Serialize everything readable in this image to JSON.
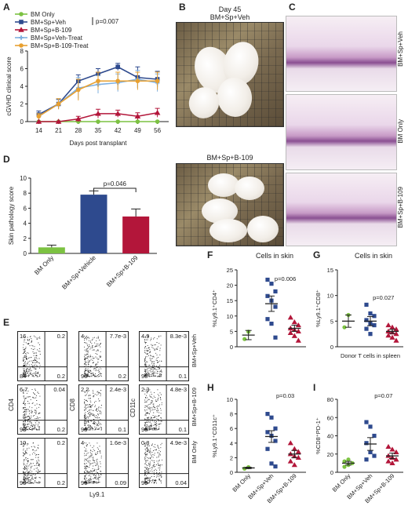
{
  "panels": {
    "a": "A",
    "b": "B",
    "c": "C",
    "d": "D",
    "e": "E",
    "f": "F",
    "g": "G",
    "h": "H",
    "i": "I"
  },
  "photos": {
    "top_label_line1": "Day 45",
    "top_label_line2": "BM+Sp+Veh",
    "bottom_label": "BM+Sp+B-109"
  },
  "histology": [
    "BM+Sp+Veh",
    "BM Only",
    "BM+Sp+B-109"
  ],
  "colors": {
    "bm_only": "#7cc242",
    "veh": "#2e4a8e",
    "b109": "#b3163a",
    "veh_treat": "#7fb0e0",
    "b109_treat": "#e8a030",
    "grid": "#888888"
  },
  "chart_data": [
    {
      "id": "A",
      "type": "line",
      "ylabel": "cGVHD clinical score",
      "xlabel": "Days post transplant",
      "x": [
        14,
        21,
        28,
        35,
        42,
        49,
        56
      ],
      "ylim": [
        0,
        8
      ],
      "yticks": [
        0,
        2,
        4,
        6,
        8
      ],
      "annotation": "p=0.007",
      "series": [
        {
          "name": "BM Only",
          "color": "#7cc242",
          "marker": "circle",
          "values": [
            0,
            0,
            0,
            0,
            0,
            0,
            0
          ],
          "err": [
            0,
            0,
            0,
            0,
            0,
            0,
            0
          ]
        },
        {
          "name": "BM+Sp+Veh",
          "color": "#2e4a8e",
          "marker": "square",
          "values": [
            0.8,
            2.0,
            4.6,
            5.4,
            6.2,
            5.0,
            4.8
          ],
          "err": [
            0.4,
            0.5,
            0.7,
            0.6,
            0.4,
            1.2,
            0.9
          ]
        },
        {
          "name": "BM+Sp+B-109",
          "color": "#b3163a",
          "marker": "triangle",
          "values": [
            0,
            0,
            0.3,
            0.9,
            0.9,
            0.6,
            1.0
          ],
          "err": [
            0,
            0,
            0.3,
            0.5,
            0.4,
            0.4,
            0.5
          ]
        },
        {
          "name": "BM+Sp+Veh-Treat",
          "color": "#7fb0e0",
          "marker": "cross",
          "values": [
            0.6,
            2.0,
            3.8,
            4.2,
            4.4,
            4.8,
            4.4
          ],
          "err": [
            0.3,
            0.6,
            1.2,
            1.0,
            1.0,
            1.0,
            1.0
          ]
        },
        {
          "name": "BM+Sp+B-109-Treat",
          "color": "#e8a030",
          "marker": "circle",
          "values": [
            0.6,
            2.0,
            3.6,
            4.6,
            4.6,
            4.6,
            4.6
          ],
          "err": [
            0.3,
            0.6,
            1.2,
            1.0,
            1.0,
            1.0,
            1.0
          ]
        }
      ]
    },
    {
      "id": "D",
      "type": "bar",
      "ylabel": "Skin pathology score",
      "categories": [
        "BM Only",
        "BM+Sp+Vehicle",
        "BM+Sp+B-109"
      ],
      "values": [
        0.8,
        7.8,
        4.9
      ],
      "err": [
        0.3,
        0.5,
        1.0
      ],
      "colors": [
        "#7cc242",
        "#2e4a8e",
        "#b3163a"
      ],
      "ylim": [
        0,
        10
      ],
      "yticks": [
        0,
        2,
        4,
        6,
        8,
        10
      ],
      "annotation": "p=0.046"
    },
    {
      "id": "F",
      "type": "scatter",
      "title": "Cells in skin",
      "ylabel": "%Ly9.1⁺CD4⁺",
      "ylim": [
        0,
        25
      ],
      "yticks": [
        0,
        5,
        10,
        15,
        20,
        25
      ],
      "annotation": "p=0.006",
      "groups": [
        {
          "color": "#7cc242",
          "marker": "circle",
          "mean": 3.8,
          "sem": 1.5,
          "points": [
            2.5,
            4.9
          ]
        },
        {
          "color": "#2e4a8e",
          "marker": "square",
          "mean": 14.0,
          "sem": 2.5,
          "points": [
            21.8,
            20.5,
            18.0,
            16.5,
            15.0,
            13.0,
            9.0,
            7.5,
            3.0
          ]
        },
        {
          "color": "#b3163a",
          "marker": "triangle",
          "mean": 6.0,
          "sem": 1.0,
          "points": [
            9.5,
            8.0,
            7.0,
            6.0,
            5.5,
            5.0,
            4.5,
            3.5,
            2.0
          ]
        }
      ]
    },
    {
      "id": "G",
      "type": "scatter",
      "title": "Cells in skin",
      "ylabel": "%Ly9.1⁺CD8⁺",
      "xlabel": "Donor T cells in spleen",
      "ylim": [
        0,
        15
      ],
      "yticks": [
        0,
        5,
        10,
        15
      ],
      "annotation": "p=0.027",
      "groups": [
        {
          "color": "#7cc242",
          "marker": "circle",
          "mean": 5.0,
          "sem": 1.2,
          "points": [
            3.8,
            6.2
          ]
        },
        {
          "color": "#2e4a8e",
          "marker": "square",
          "mean": 5.0,
          "sem": 0.9,
          "points": [
            8.2,
            6.5,
            6.0,
            5.2,
            4.5,
            4.2,
            3.5,
            2.5
          ]
        },
        {
          "color": "#b3163a",
          "marker": "triangle",
          "mean": 3.0,
          "sem": 0.4,
          "points": [
            4.2,
            3.8,
            3.4,
            3.0,
            2.8,
            2.5,
            2.2,
            1.8,
            1.2
          ]
        }
      ]
    },
    {
      "id": "H",
      "type": "scatter",
      "ylabel": "%Ly9.1⁺CD11c⁺",
      "categories": [
        "BM Only",
        "BM+Sp+Veh",
        "BM+Sp+B-109"
      ],
      "ylim": [
        0,
        10
      ],
      "yticks": [
        0,
        2,
        4,
        6,
        8,
        10
      ],
      "annotation": "p=0.03",
      "groups": [
        {
          "color": "#7cc242",
          "marker": "circle",
          "mean": 0.6,
          "sem": 0.1,
          "points": [
            0.5,
            0.7
          ]
        },
        {
          "color": "#2e4a8e",
          "marker": "square",
          "mean": 4.9,
          "sem": 0.8,
          "points": [
            8.0,
            7.5,
            6.0,
            5.5,
            5.0,
            4.3,
            3.2,
            1.2,
            0.8
          ]
        },
        {
          "color": "#b3163a",
          "marker": "triangle",
          "mean": 2.5,
          "sem": 0.5,
          "points": [
            4.0,
            3.2,
            2.8,
            2.5,
            2.2,
            2.0,
            1.5,
            1.0
          ]
        }
      ]
    },
    {
      "id": "I",
      "type": "scatter",
      "ylabel": "%CD8⁺PD-1⁺",
      "categories": [
        "BM Only",
        "BM+Sp+Veh",
        "BM+Sp+B-109"
      ],
      "ylim": [
        0,
        80
      ],
      "yticks": [
        0,
        20,
        40,
        60,
        80
      ],
      "annotation": "p=0.07",
      "groups": [
        {
          "color": "#7cc242",
          "marker": "circle",
          "mean": 10,
          "sem": 2,
          "points": [
            6,
            8,
            10,
            12,
            14
          ]
        },
        {
          "color": "#2e4a8e",
          "marker": "square",
          "mean": 31,
          "sem": 7,
          "points": [
            55,
            50,
            40,
            32,
            22,
            18,
            14
          ]
        },
        {
          "color": "#b3163a",
          "marker": "triangle",
          "mean": 18,
          "sem": 3,
          "points": [
            28,
            25,
            22,
            18,
            16,
            14,
            12,
            10
          ]
        }
      ]
    }
  ],
  "flow": {
    "xlabel": "Ly9.1",
    "col_labels": [
      "CD4",
      "CD8",
      "CD11c"
    ],
    "row_labels": [
      "BM+Sp+Veh",
      "BM+Sp+B-109",
      "BM Only"
    ],
    "plots": [
      [
        {
          "tl": "16",
          "tr": "0.2",
          "bl": "84",
          "br": "0.2"
        },
        {
          "tl": "4",
          "tr": "7.7e-3",
          "bl": "96",
          "br": "0.2"
        },
        {
          "tl": "4.9",
          "tr": "8.3e-3",
          "bl": "95",
          "br": "0.1"
        }
      ],
      [
        {
          "tl": "6.7",
          "tr": "0.04",
          "bl": "93",
          "br": "0.2"
        },
        {
          "tl": "2.2",
          "tr": "2.4e-3",
          "bl": "98",
          "br": "0.1"
        },
        {
          "tl": "2.3",
          "tr": "4.8e-3",
          "bl": "98",
          "br": "0.1"
        }
      ],
      [
        {
          "tl": "10",
          "tr": "0.2",
          "bl": "90",
          "br": "0.2"
        },
        {
          "tl": "4",
          "tr": "1.6e-3",
          "bl": "96",
          "br": "0.09"
        },
        {
          "tl": "0.8",
          "tr": "4.9e-3",
          "bl": "99",
          "br": "0.04"
        }
      ]
    ]
  }
}
